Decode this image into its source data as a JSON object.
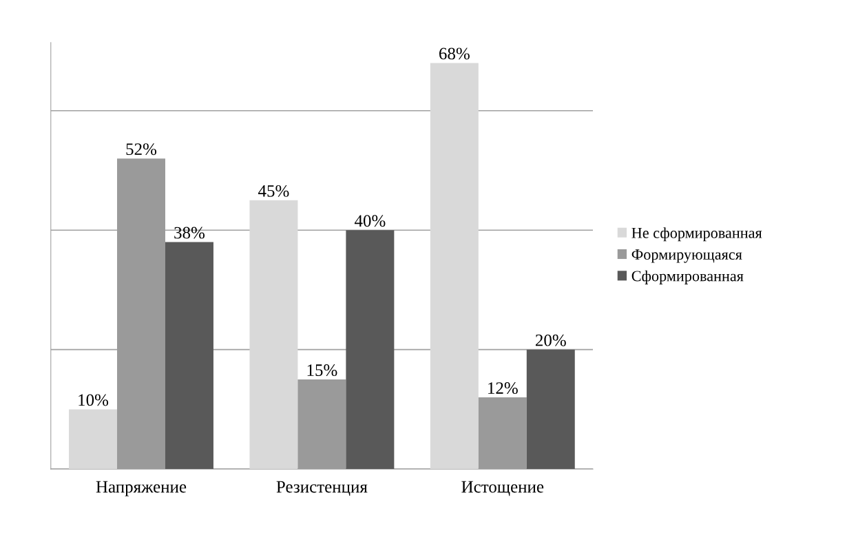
{
  "chart_data": {
    "type": "bar",
    "categories": [
      "Напряжение",
      "Резистенция",
      "Истощение"
    ],
    "series": [
      {
        "name": "Не сформированная",
        "color": "#d9d9d9",
        "values": [
          10,
          45,
          68
        ],
        "value_labels": [
          "10%",
          "45%",
          "68%"
        ]
      },
      {
        "name": "Формирующаяся",
        "color": "#9a9a9a",
        "values": [
          52,
          15,
          12
        ],
        "value_labels": [
          "52%",
          "15%",
          "12%"
        ]
      },
      {
        "name": "Сформированная",
        "color": "#595959",
        "values": [
          38,
          40,
          20
        ],
        "value_labels": [
          "38%",
          "40%",
          "20%"
        ]
      }
    ],
    "tick_labels": "x",
    "grid": "y",
    "legend": "right"
  }
}
